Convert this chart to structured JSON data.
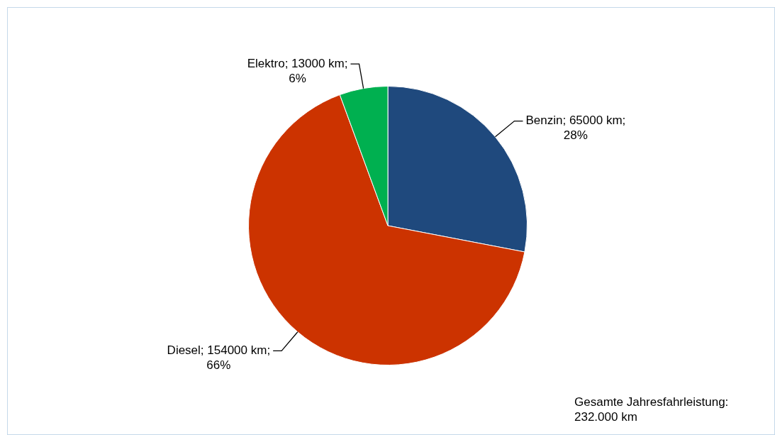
{
  "chart_data": {
    "type": "pie",
    "categories": [
      "Benzin",
      "Diesel",
      "Elektro"
    ],
    "values": [
      65000,
      154000,
      13000
    ],
    "colors": [
      "#1f497d",
      "#cc3300",
      "#00b050"
    ],
    "value_labels": [
      "65000 km; 28%",
      "154000 km; 66%",
      "13000 km; 6%"
    ],
    "annotations": [
      "Gesamte Jahresfahrleistung: 232.000 km"
    ],
    "legend": false
  }
}
